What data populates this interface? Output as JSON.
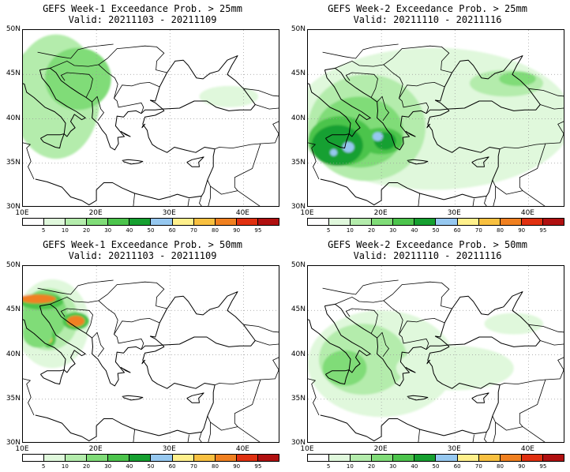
{
  "panels": [
    {
      "title": "GEFS Week-1 Exceedance Prob. > 25mm",
      "valid": "Valid: 20211103 - 20211109",
      "blobs": [
        {
          "lon": 13.0,
          "lat": 45.6,
          "rlon": 3.0,
          "rlat": 1.4,
          "level": 10
        },
        {
          "lon": 16.8,
          "lat": 44.0,
          "rlon": 2.0,
          "rlat": 1.6,
          "level": 9
        },
        {
          "lon": 13.2,
          "lat": 42.2,
          "rlon": 1.8,
          "rlat": 1.8,
          "level": 9
        },
        {
          "lon": 11.0,
          "lat": 44.5,
          "rlon": 0.9,
          "rlat": 0.9,
          "level": 9
        },
        {
          "lon": 12.8,
          "lat": 46.9,
          "rlon": 2.4,
          "rlat": 0.6,
          "level": 9
        },
        {
          "lon": 14.5,
          "lat": 43.5,
          "rlon": 3.6,
          "rlat": 3.6,
          "level": 7
        },
        {
          "lon": 13.0,
          "lat": 43.5,
          "rlon": 4.5,
          "rlat": 5.0,
          "level": 4
        },
        {
          "lon": 14.5,
          "lat": 42.5,
          "rlon": 6.0,
          "rlat": 7.0,
          "level": 2
        },
        {
          "lon": 17.5,
          "lat": 44.5,
          "rlon": 4.5,
          "rlat": 3.5,
          "level": 3
        },
        {
          "lon": 38.0,
          "lat": 42.5,
          "rlon": 4.0,
          "rlat": 1.2,
          "level": 1
        }
      ]
    },
    {
      "title": "GEFS Week-2 Exceedance Prob. > 25mm",
      "valid": "Valid: 20211110 - 20211116",
      "blobs": [
        {
          "lon": 27.0,
          "lat": 40.0,
          "rlon": 19.0,
          "rlat": 8.0,
          "level": 1
        },
        {
          "lon": 18.0,
          "lat": 39.0,
          "rlon": 8.0,
          "rlat": 6.0,
          "level": 2
        },
        {
          "lon": 17.0,
          "lat": 38.5,
          "rlon": 6.0,
          "rlat": 4.0,
          "level": 3
        },
        {
          "lon": 14.5,
          "lat": 37.5,
          "rlon": 4.5,
          "rlat": 2.8,
          "level": 4
        },
        {
          "lon": 20.0,
          "lat": 37.5,
          "rlon": 3.0,
          "rlat": 1.5,
          "level": 4
        },
        {
          "lon": 14.0,
          "lat": 37.0,
          "rlon": 3.5,
          "rlat": 2.3,
          "level": 5
        },
        {
          "lon": 20.5,
          "lat": 37.5,
          "rlon": 1.5,
          "rlat": 1.0,
          "level": 5
        },
        {
          "lon": 15.5,
          "lat": 36.8,
          "rlon": 0.8,
          "rlat": 0.6,
          "level": 6
        },
        {
          "lon": 19.5,
          "lat": 38.0,
          "rlon": 0.7,
          "rlat": 0.5,
          "level": 6
        },
        {
          "lon": 13.5,
          "lat": 36.2,
          "rlon": 0.5,
          "rlat": 0.4,
          "level": 6
        },
        {
          "lon": 37.0,
          "lat": 44.0,
          "rlon": 5.0,
          "rlat": 1.5,
          "level": 2
        },
        {
          "lon": 38.5,
          "lat": 44.5,
          "rlon": 2.5,
          "rlat": 0.8,
          "level": 3
        }
      ]
    },
    {
      "title": "GEFS Week-1 Exceedance Prob. > 50mm",
      "valid": "Valid: 20211103 - 20211109",
      "blobs": [
        {
          "lon": 14.0,
          "lat": 43.5,
          "rlon": 5.0,
          "rlat": 5.0,
          "level": 1
        },
        {
          "lon": 13.5,
          "lat": 44.0,
          "rlon": 4.0,
          "rlat": 3.5,
          "level": 2
        },
        {
          "lon": 13.0,
          "lat": 44.5,
          "rlon": 3.0,
          "rlat": 2.8,
          "level": 3
        },
        {
          "lon": 12.5,
          "lat": 46.0,
          "rlon": 3.0,
          "rlat": 0.9,
          "level": 4
        },
        {
          "lon": 12.0,
          "lat": 46.3,
          "rlon": 2.5,
          "rlat": 0.5,
          "level": 9
        },
        {
          "lon": 17.2,
          "lat": 43.8,
          "rlon": 1.8,
          "rlat": 1.0,
          "level": 4
        },
        {
          "lon": 17.2,
          "lat": 43.8,
          "rlon": 1.2,
          "rlat": 0.6,
          "level": 9
        },
        {
          "lon": 13.5,
          "lat": 41.8,
          "rlon": 1.0,
          "rlat": 1.0,
          "level": 4
        },
        {
          "lon": 13.5,
          "lat": 41.8,
          "rlon": 0.5,
          "rlat": 0.5,
          "level": 8
        },
        {
          "lon": 12.0,
          "lat": 42.3,
          "rlon": 2.0,
          "rlat": 1.5,
          "level": 3
        }
      ]
    },
    {
      "title": "GEFS Week-2 Exceedance Prob. > 50mm",
      "valid": "Valid: 20211110 - 20211116",
      "blobs": [
        {
          "lon": 20.0,
          "lat": 39.0,
          "rlon": 10.0,
          "rlat": 6.0,
          "level": 1
        },
        {
          "lon": 17.5,
          "lat": 39.5,
          "rlon": 6.0,
          "rlat": 4.0,
          "level": 2
        },
        {
          "lon": 15.0,
          "lat": 38.5,
          "rlon": 3.0,
          "rlat": 2.0,
          "level": 3
        },
        {
          "lon": 30.0,
          "lat": 38.5,
          "rlon": 8.0,
          "rlat": 2.5,
          "level": 1
        },
        {
          "lon": 38.0,
          "lat": 43.5,
          "rlon": 4.0,
          "rlat": 1.2,
          "level": 1
        }
      ]
    }
  ],
  "axes": {
    "lat_labels": [
      "50N",
      "45N",
      "40N",
      "35N",
      "30N"
    ],
    "lat_values": [
      50,
      45,
      40,
      35,
      30
    ],
    "lon_labels": [
      "10E",
      "20E",
      "30E",
      "40E"
    ],
    "lon_values": [
      10,
      20,
      30,
      40
    ],
    "lon_range": [
      10,
      45
    ],
    "lat_range": [
      30,
      50
    ]
  },
  "colorbar": {
    "labels": [
      "5",
      "10",
      "20",
      "30",
      "40",
      "50",
      "60",
      "70",
      "80",
      "90",
      "95"
    ],
    "colors": [
      "#ffffff",
      "#e0f8dc",
      "#b4ecac",
      "#80dc78",
      "#4cc44c",
      "#16a030",
      "#96c8f0",
      "#fff08c",
      "#f8c040",
      "#f08020",
      "#e03010",
      "#b01010",
      "#c83a3a"
    ]
  }
}
